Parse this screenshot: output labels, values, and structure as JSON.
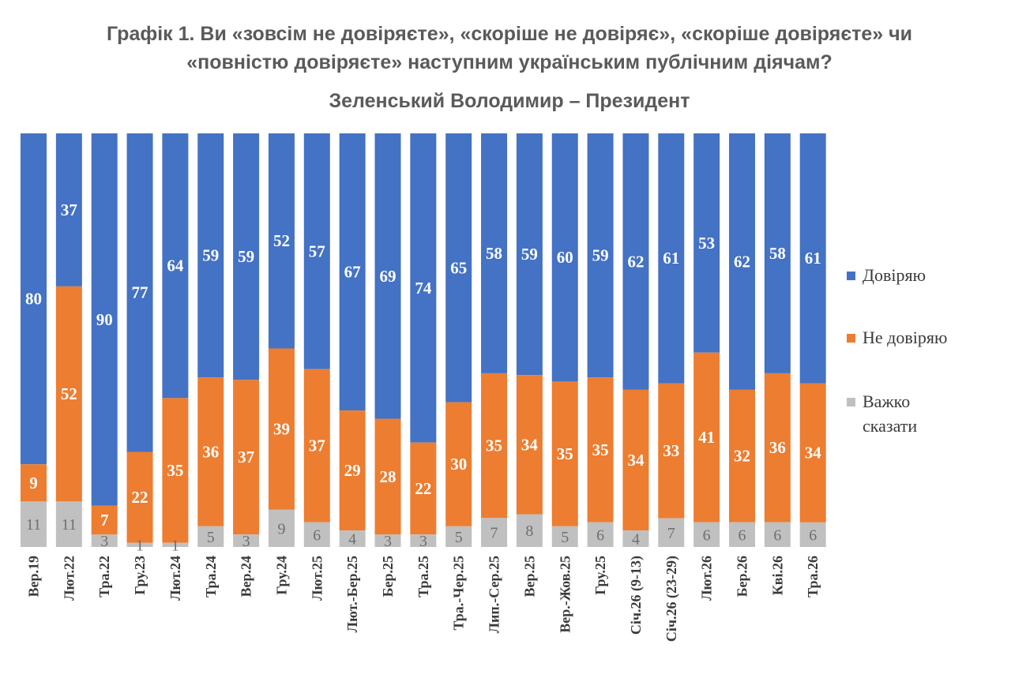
{
  "title_line1": "Графік 1. Ви «зовсім не довіряєте», «скоріше не довіряє», «скоріше довіряєте» чи",
  "title_line2": "«повністю довіряєте» наступним українським публічним діячам?",
  "subtitle": "Зеленський Володимир – Президент",
  "colors": {
    "trust": "#4472c4",
    "distrust": "#ed7d31",
    "hard_to_say": "#c0c0c0"
  },
  "legend": {
    "trust": "Довіряю",
    "distrust": "Не довіряю",
    "hard_to_say_line1": "Важко",
    "hard_to_say_line2": "сказати"
  },
  "chart_data": {
    "type": "bar",
    "stacked": true,
    "percent_stacked": true,
    "title": "Зеленський Володимир – Президент",
    "legend_position": "right",
    "categories": [
      "Вер.19",
      "Лют.22",
      "Тра.22",
      "Гру.23",
      "Лют.24",
      "Тра.24",
      "Вер.24",
      "Гру.24",
      "Лют.25",
      "Лют.-Бер.25",
      "Бер.25",
      "Тра.25",
      "Тра.-Чер.25",
      "Лип.-Сер.25",
      "Вер.25",
      "Вер.-Жов.25",
      "Гру.25",
      "Січ.26 (9-13)",
      "Січ.26 (23-29)",
      "Лют.26",
      "Бер.26",
      "Кві.26",
      "Тра.26"
    ],
    "series": [
      {
        "name": "Важко сказати",
        "values": [
          11,
          11,
          3,
          1,
          1,
          5,
          3,
          9,
          6,
          4,
          3,
          3,
          5,
          7,
          8,
          5,
          6,
          4,
          7,
          6,
          6,
          6,
          6
        ]
      },
      {
        "name": "Не довіряю",
        "values": [
          9,
          52,
          7,
          22,
          35,
          36,
          37,
          39,
          37,
          29,
          28,
          22,
          30,
          35,
          34,
          35,
          35,
          34,
          33,
          41,
          32,
          36,
          34
        ]
      },
      {
        "name": "Довіряю",
        "values": [
          80,
          37,
          90,
          77,
          64,
          59,
          59,
          52,
          57,
          67,
          69,
          74,
          65,
          58,
          59,
          60,
          59,
          62,
          61,
          53,
          62,
          58,
          61
        ]
      }
    ],
    "ylim": [
      0,
      100
    ]
  }
}
